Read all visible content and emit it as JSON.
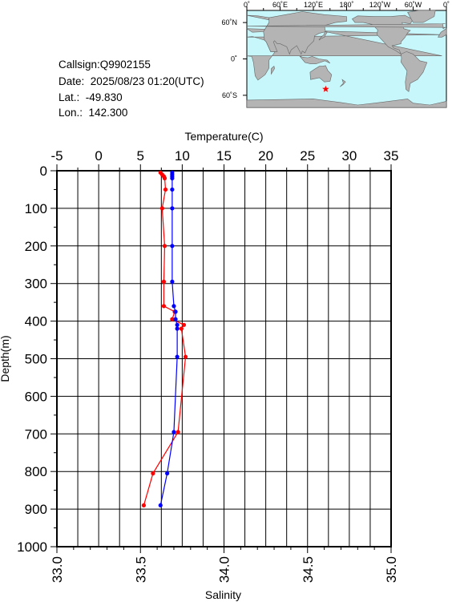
{
  "station": {
    "callsign_label": "Callsign:",
    "callsign": "Q9902155",
    "date_label": "Date:",
    "date": "2025/08/23 01:20(UTC)",
    "lat_label": "Lat.:",
    "lat": "-49.830",
    "lon_label": "Lon.:",
    "lon": "142.300"
  },
  "map": {
    "top_labels": [
      "0˚",
      "60˚E",
      "120˚E",
      "180˚",
      "120˚W",
      "60˚W",
      "0˚"
    ],
    "side_labels": [
      "60˚N",
      "0˚",
      "60˚S"
    ],
    "marker_lon": 142.3,
    "marker_lat": -49.83,
    "ocean_color": "#c8f7fb",
    "land_color": "#b4b4b4",
    "marker_color": "#ff0000"
  },
  "chart_data": {
    "type": "line",
    "top_axis": {
      "label": "Temperature(C)",
      "min": -5,
      "max": 35,
      "ticks": [
        -5,
        0,
        5,
        10,
        15,
        20,
        25,
        30,
        35
      ],
      "tick_labels": [
        "-5",
        "0",
        "5",
        "10",
        "15",
        "20",
        "25",
        "30",
        "35"
      ]
    },
    "bottom_axis": {
      "label": "Salinity",
      "min": 33.0,
      "max": 35.0,
      "ticks": [
        33.0,
        33.5,
        34.0,
        34.5,
        35.0
      ],
      "tick_labels": [
        "33.0",
        "33.5",
        "34.0",
        "34.5",
        "35.0"
      ]
    },
    "y_axis": {
      "label": "Depth(m)",
      "min": 0,
      "max": 1000,
      "inverted": true,
      "ticks": [
        0,
        100,
        200,
        300,
        400,
        500,
        600,
        700,
        800,
        900,
        1000
      ],
      "tick_labels": [
        "0",
        "100",
        "200",
        "300",
        "400",
        "500",
        "600",
        "700",
        "800",
        "900",
        "1000"
      ]
    },
    "grid": true,
    "series": [
      {
        "axis": "top",
        "color": "#ff0000",
        "points": [
          {
            "x": 7.4,
            "y": 5
          },
          {
            "x": 7.6,
            "y": 10
          },
          {
            "x": 7.8,
            "y": 15
          },
          {
            "x": 7.9,
            "y": 20
          },
          {
            "x": 8.0,
            "y": 50
          },
          {
            "x": 7.6,
            "y": 100
          },
          {
            "x": 7.9,
            "y": 200
          },
          {
            "x": 7.8,
            "y": 295
          },
          {
            "x": 7.8,
            "y": 360
          },
          {
            "x": 9.1,
            "y": 375
          },
          {
            "x": 8.8,
            "y": 395
          },
          {
            "x": 10.2,
            "y": 410
          },
          {
            "x": 9.9,
            "y": 420
          },
          {
            "x": 10.4,
            "y": 495
          },
          {
            "x": 9.5,
            "y": 695
          },
          {
            "x": 6.5,
            "y": 805
          },
          {
            "x": 5.4,
            "y": 890
          }
        ]
      },
      {
        "axis": "bottom",
        "color": "#0000ff",
        "points": [
          {
            "x": 33.69,
            "y": 5
          },
          {
            "x": 33.69,
            "y": 10
          },
          {
            "x": 33.69,
            "y": 15
          },
          {
            "x": 33.69,
            "y": 20
          },
          {
            "x": 33.69,
            "y": 50
          },
          {
            "x": 33.69,
            "y": 100
          },
          {
            "x": 33.69,
            "y": 200
          },
          {
            "x": 33.69,
            "y": 295
          },
          {
            "x": 33.7,
            "y": 360
          },
          {
            "x": 33.71,
            "y": 375
          },
          {
            "x": 33.71,
            "y": 395
          },
          {
            "x": 33.72,
            "y": 410
          },
          {
            "x": 33.72,
            "y": 420
          },
          {
            "x": 33.72,
            "y": 495
          },
          {
            "x": 33.7,
            "y": 695
          },
          {
            "x": 33.66,
            "y": 805
          },
          {
            "x": 33.62,
            "y": 890
          }
        ]
      }
    ]
  }
}
